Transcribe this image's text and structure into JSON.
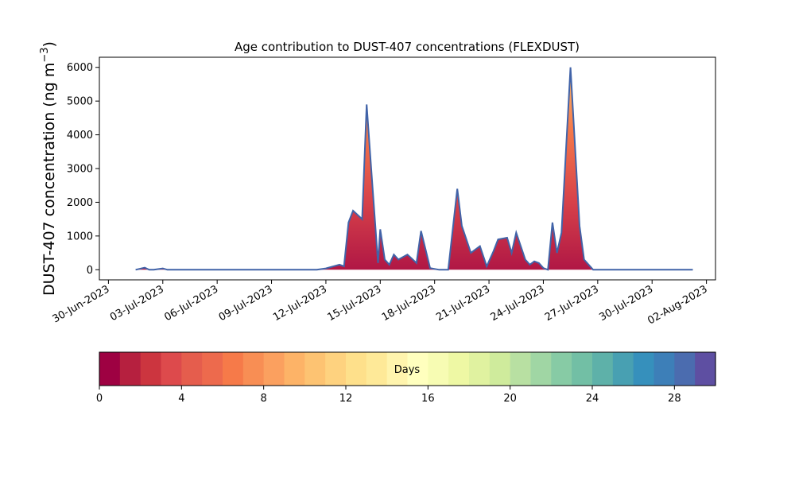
{
  "chart_data": {
    "type": "area",
    "title": "Age contribution to DUST-407 concentrations (FLEXDUST)",
    "xlabel": "",
    "ylabel": "DUST-407 concentration (ng m",
    "ylabel_sup": "−3",
    "ylabel_close": ")",
    "ylim": [
      -300,
      6300
    ],
    "yticks": [
      0,
      1000,
      2000,
      3000,
      4000,
      5000,
      6000
    ],
    "xlim": [
      "2023-06-29T12:00",
      "2023-08-02T12:00"
    ],
    "xticks": [
      "30-Jun-2023",
      "03-Jul-2023",
      "06-Jul-2023",
      "09-Jul-2023",
      "12-Jul-2023",
      "15-Jul-2023",
      "18-Jul-2023",
      "21-Jul-2023",
      "24-Jul-2023",
      "27-Jul-2023",
      "30-Jul-2023",
      "02-Aug-2023"
    ],
    "xtick_dates": [
      "2023-06-30",
      "2023-07-03",
      "2023-07-06",
      "2023-07-09",
      "2023-07-12",
      "2023-07-15",
      "2023-07-18",
      "2023-07-21",
      "2023-07-24",
      "2023-07-27",
      "2023-07-30",
      "2023-08-02"
    ],
    "line_color": "#4163a8",
    "series": {
      "x": [
        "2023-07-01T12:00",
        "2023-07-02T00:00",
        "2023-07-02T06:00",
        "2023-07-02T12:00",
        "2023-07-03T00:00",
        "2023-07-03T06:00",
        "2023-07-04T00:00",
        "2023-07-06T00:00",
        "2023-07-08T00:00",
        "2023-07-10T00:00",
        "2023-07-11T12:00",
        "2023-07-12T00:00",
        "2023-07-12T18:00",
        "2023-07-13T00:00",
        "2023-07-13T06:00",
        "2023-07-13T12:00",
        "2023-07-14T00:00",
        "2023-07-14T06:00",
        "2023-07-14T12:00",
        "2023-07-14T21:00",
        "2023-07-15T00:00",
        "2023-07-15T06:00",
        "2023-07-15T12:00",
        "2023-07-15T18:00",
        "2023-07-16T00:00",
        "2023-07-16T12:00",
        "2023-07-17T00:00",
        "2023-07-17T06:00",
        "2023-07-17T12:00",
        "2023-07-17T18:00",
        "2023-07-18T06:00",
        "2023-07-18T12:00",
        "2023-07-18T18:00",
        "2023-07-19T06:00",
        "2023-07-19T12:00",
        "2023-07-20T00:00",
        "2023-07-20T12:00",
        "2023-07-20T21:00",
        "2023-07-21T06:00",
        "2023-07-21T12:00",
        "2023-07-22T00:00",
        "2023-07-22T06:00",
        "2023-07-22T12:00",
        "2023-07-23T00:00",
        "2023-07-23T06:00",
        "2023-07-23T12:00",
        "2023-07-23T18:00",
        "2023-07-24T00:00",
        "2023-07-24T06:00",
        "2023-07-24T12:00",
        "2023-07-24T18:00",
        "2023-07-25T00:00",
        "2023-07-25T12:00",
        "2023-07-26T00:00",
        "2023-07-26T06:00",
        "2023-07-26T12:00",
        "2023-07-26T18:00",
        "2023-07-27T00:00",
        "2023-07-27T06:00",
        "2023-07-27T12:00",
        "2023-07-28T00:00",
        "2023-07-28T06:00",
        "2023-07-28T12:00",
        "2023-07-29T00:00",
        "2023-07-30T00:00",
        "2023-07-31T00:00",
        "2023-08-01T06:00"
      ],
      "y": [
        0,
        60,
        0,
        0,
        40,
        0,
        0,
        0,
        0,
        0,
        0,
        40,
        150,
        100,
        1400,
        1750,
        1500,
        4900,
        3000,
        200,
        1200,
        300,
        150,
        450,
        300,
        450,
        200,
        1150,
        600,
        50,
        0,
        0,
        0,
        2400,
        1300,
        500,
        700,
        100,
        550,
        900,
        950,
        500,
        1100,
        300,
        150,
        250,
        200,
        50,
        0,
        1400,
        500,
        1100,
        6000,
        1300,
        300,
        150,
        0,
        0,
        0,
        0,
        0,
        0,
        0,
        0,
        0,
        0,
        0
      ],
      "fill_rule": "gradient from dark red at base to light yellow near the top of each peak"
    },
    "colorbar": {
      "label": "Days",
      "range": [
        0,
        30
      ],
      "ticks": [
        "0",
        "4",
        "8",
        "12",
        "16",
        "20",
        "24",
        "28"
      ],
      "tick_values": [
        0,
        4,
        8,
        12,
        16,
        20,
        24,
        28
      ],
      "colors": [
        "#9e0142",
        "#b6203f",
        "#cc353f",
        "#dd4a4c",
        "#e55d4d",
        "#ed6a4d",
        "#f67a49",
        "#f88e54",
        "#fba05f",
        "#fdb367",
        "#fdc372",
        "#fed27f",
        "#fee08b",
        "#fee998",
        "#fff4ad",
        "#ffffbe",
        "#f7fcb3",
        "#eef8a4",
        "#e0f2a0",
        "#cfeb9c",
        "#b8e0a2",
        "#a0d6a4",
        "#87cba5",
        "#72bfa5",
        "#5eb1a9",
        "#48a0b2",
        "#3690bc",
        "#3d7fb8",
        "#4b6caf",
        "#5e4fa2"
      ]
    }
  }
}
